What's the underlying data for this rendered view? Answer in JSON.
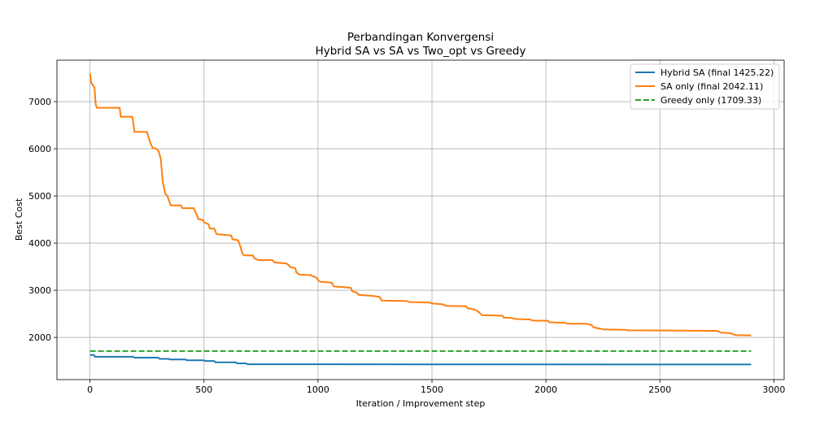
{
  "chart_data": {
    "type": "line",
    "title_line1": "Perbandingan Konvergensi",
    "title_line2": "Hybrid SA vs SA vs Two_opt vs Greedy",
    "xlabel": "Iteration / Improvement step",
    "ylabel": "Best Cost",
    "xlim": [
      -145,
      3045
    ],
    "ylim": [
      1105,
      7880
    ],
    "xticks": [
      0,
      500,
      1000,
      1500,
      2000,
      2500,
      3000
    ],
    "yticks": [
      2000,
      3000,
      4000,
      5000,
      6000,
      7000
    ],
    "grid": true,
    "legend_position": "top-right",
    "series": [
      {
        "name": "Hybrid SA (final 1425.22)",
        "color": "#1f77b4",
        "style": "solid",
        "points": [
          [
            0,
            1625
          ],
          [
            18,
            1625
          ],
          [
            22,
            1590
          ],
          [
            190,
            1590
          ],
          [
            195,
            1570
          ],
          [
            300,
            1570
          ],
          [
            305,
            1545
          ],
          [
            345,
            1545
          ],
          [
            350,
            1530
          ],
          [
            420,
            1530
          ],
          [
            425,
            1515
          ],
          [
            500,
            1515
          ],
          [
            505,
            1500
          ],
          [
            545,
            1500
          ],
          [
            550,
            1470
          ],
          [
            640,
            1470
          ],
          [
            645,
            1450
          ],
          [
            685,
            1450
          ],
          [
            690,
            1430
          ],
          [
            2900,
            1425
          ]
        ]
      },
      {
        "name": "SA only (final 2042.11)",
        "color": "#ff7f0e",
        "style": "solid",
        "points": [
          [
            0,
            7600
          ],
          [
            5,
            7400
          ],
          [
            12,
            7350
          ],
          [
            20,
            7300
          ],
          [
            25,
            6950
          ],
          [
            30,
            6870
          ],
          [
            130,
            6870
          ],
          [
            135,
            6680
          ],
          [
            185,
            6680
          ],
          [
            190,
            6550
          ],
          [
            195,
            6360
          ],
          [
            250,
            6360
          ],
          [
            255,
            6280
          ],
          [
            265,
            6120
          ],
          [
            275,
            6020
          ],
          [
            290,
            6000
          ],
          [
            300,
            5960
          ],
          [
            310,
            5800
          ],
          [
            320,
            5270
          ],
          [
            325,
            5180
          ],
          [
            330,
            5050
          ],
          [
            340,
            5000
          ],
          [
            345,
            4920
          ],
          [
            355,
            4800
          ],
          [
            400,
            4800
          ],
          [
            405,
            4740
          ],
          [
            455,
            4740
          ],
          [
            460,
            4680
          ],
          [
            470,
            4580
          ],
          [
            475,
            4510
          ],
          [
            495,
            4490
          ],
          [
            500,
            4440
          ],
          [
            520,
            4400
          ],
          [
            525,
            4310
          ],
          [
            545,
            4310
          ],
          [
            555,
            4190
          ],
          [
            620,
            4160
          ],
          [
            625,
            4080
          ],
          [
            650,
            4060
          ],
          [
            660,
            3920
          ],
          [
            670,
            3760
          ],
          [
            680,
            3740
          ],
          [
            715,
            3740
          ],
          [
            720,
            3680
          ],
          [
            740,
            3640
          ],
          [
            800,
            3640
          ],
          [
            810,
            3590
          ],
          [
            860,
            3570
          ],
          [
            870,
            3540
          ],
          [
            880,
            3490
          ],
          [
            900,
            3470
          ],
          [
            905,
            3380
          ],
          [
            920,
            3330
          ],
          [
            970,
            3320
          ],
          [
            975,
            3300
          ],
          [
            990,
            3280
          ],
          [
            1000,
            3220
          ],
          [
            1010,
            3180
          ],
          [
            1060,
            3160
          ],
          [
            1070,
            3080
          ],
          [
            1130,
            3060
          ],
          [
            1145,
            3050
          ],
          [
            1150,
            2980
          ],
          [
            1170,
            2950
          ],
          [
            1180,
            2900
          ],
          [
            1240,
            2880
          ],
          [
            1270,
            2860
          ],
          [
            1280,
            2780
          ],
          [
            1390,
            2770
          ],
          [
            1400,
            2750
          ],
          [
            1490,
            2740
          ],
          [
            1500,
            2720
          ],
          [
            1550,
            2700
          ],
          [
            1560,
            2670
          ],
          [
            1650,
            2660
          ],
          [
            1655,
            2620
          ],
          [
            1680,
            2600
          ],
          [
            1700,
            2560
          ],
          [
            1720,
            2470
          ],
          [
            1810,
            2460
          ],
          [
            1815,
            2420
          ],
          [
            1850,
            2410
          ],
          [
            1870,
            2390
          ],
          [
            1930,
            2380
          ],
          [
            1940,
            2360
          ],
          [
            2010,
            2350
          ],
          [
            2015,
            2320
          ],
          [
            2080,
            2310
          ],
          [
            2100,
            2290
          ],
          [
            2180,
            2290
          ],
          [
            2200,
            2260
          ],
          [
            2210,
            2210
          ],
          [
            2235,
            2190
          ],
          [
            2250,
            2170
          ],
          [
            2350,
            2160
          ],
          [
            2360,
            2150
          ],
          [
            2750,
            2140
          ],
          [
            2770,
            2100
          ],
          [
            2810,
            2090
          ],
          [
            2830,
            2050
          ],
          [
            2900,
            2042
          ]
        ]
      },
      {
        "name": "Greedy only (1709.33)",
        "color": "#2ca02c",
        "style": "dashed",
        "points": [
          [
            0,
            1709.33
          ],
          [
            2900,
            1709.33
          ]
        ]
      }
    ]
  }
}
